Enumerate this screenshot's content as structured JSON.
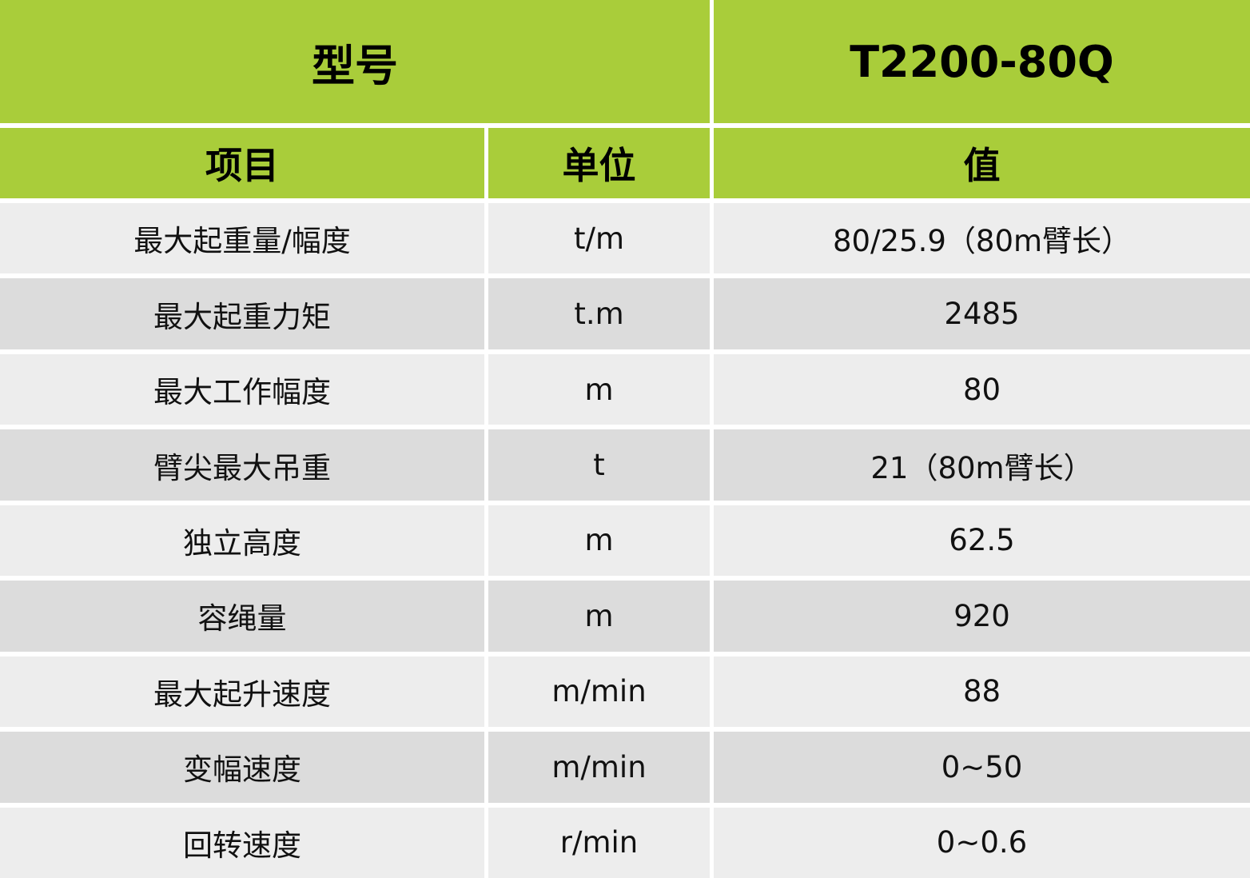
{
  "header": {
    "model_label": "型号",
    "model_value": "T2200-80Q"
  },
  "columns": {
    "item": "项目",
    "unit": "单位",
    "value": "值"
  },
  "colors": {
    "header_green": "#a9cd3a",
    "row_light": "#ededed",
    "row_dark": "#dcdcdc"
  },
  "rows": [
    {
      "item": "最大起重量/幅度",
      "unit": "t/m",
      "value": "80/25.9（80m臂长）"
    },
    {
      "item": "最大起重力矩",
      "unit": "t.m",
      "value": "2485"
    },
    {
      "item": "最大工作幅度",
      "unit": "m",
      "value": "80"
    },
    {
      "item": "臂尖最大吊重",
      "unit": "t",
      "value": "21（80m臂长）"
    },
    {
      "item": "独立高度",
      "unit": "m",
      "value": "62.5"
    },
    {
      "item": "容绳量",
      "unit": "m",
      "value": "920"
    },
    {
      "item": "最大起升速度",
      "unit": "m/min",
      "value": "88"
    },
    {
      "item": "变幅速度",
      "unit": "m/min",
      "value": "0~50"
    },
    {
      "item": "回转速度",
      "unit": "r/min",
      "value": "0~0.6"
    }
  ]
}
